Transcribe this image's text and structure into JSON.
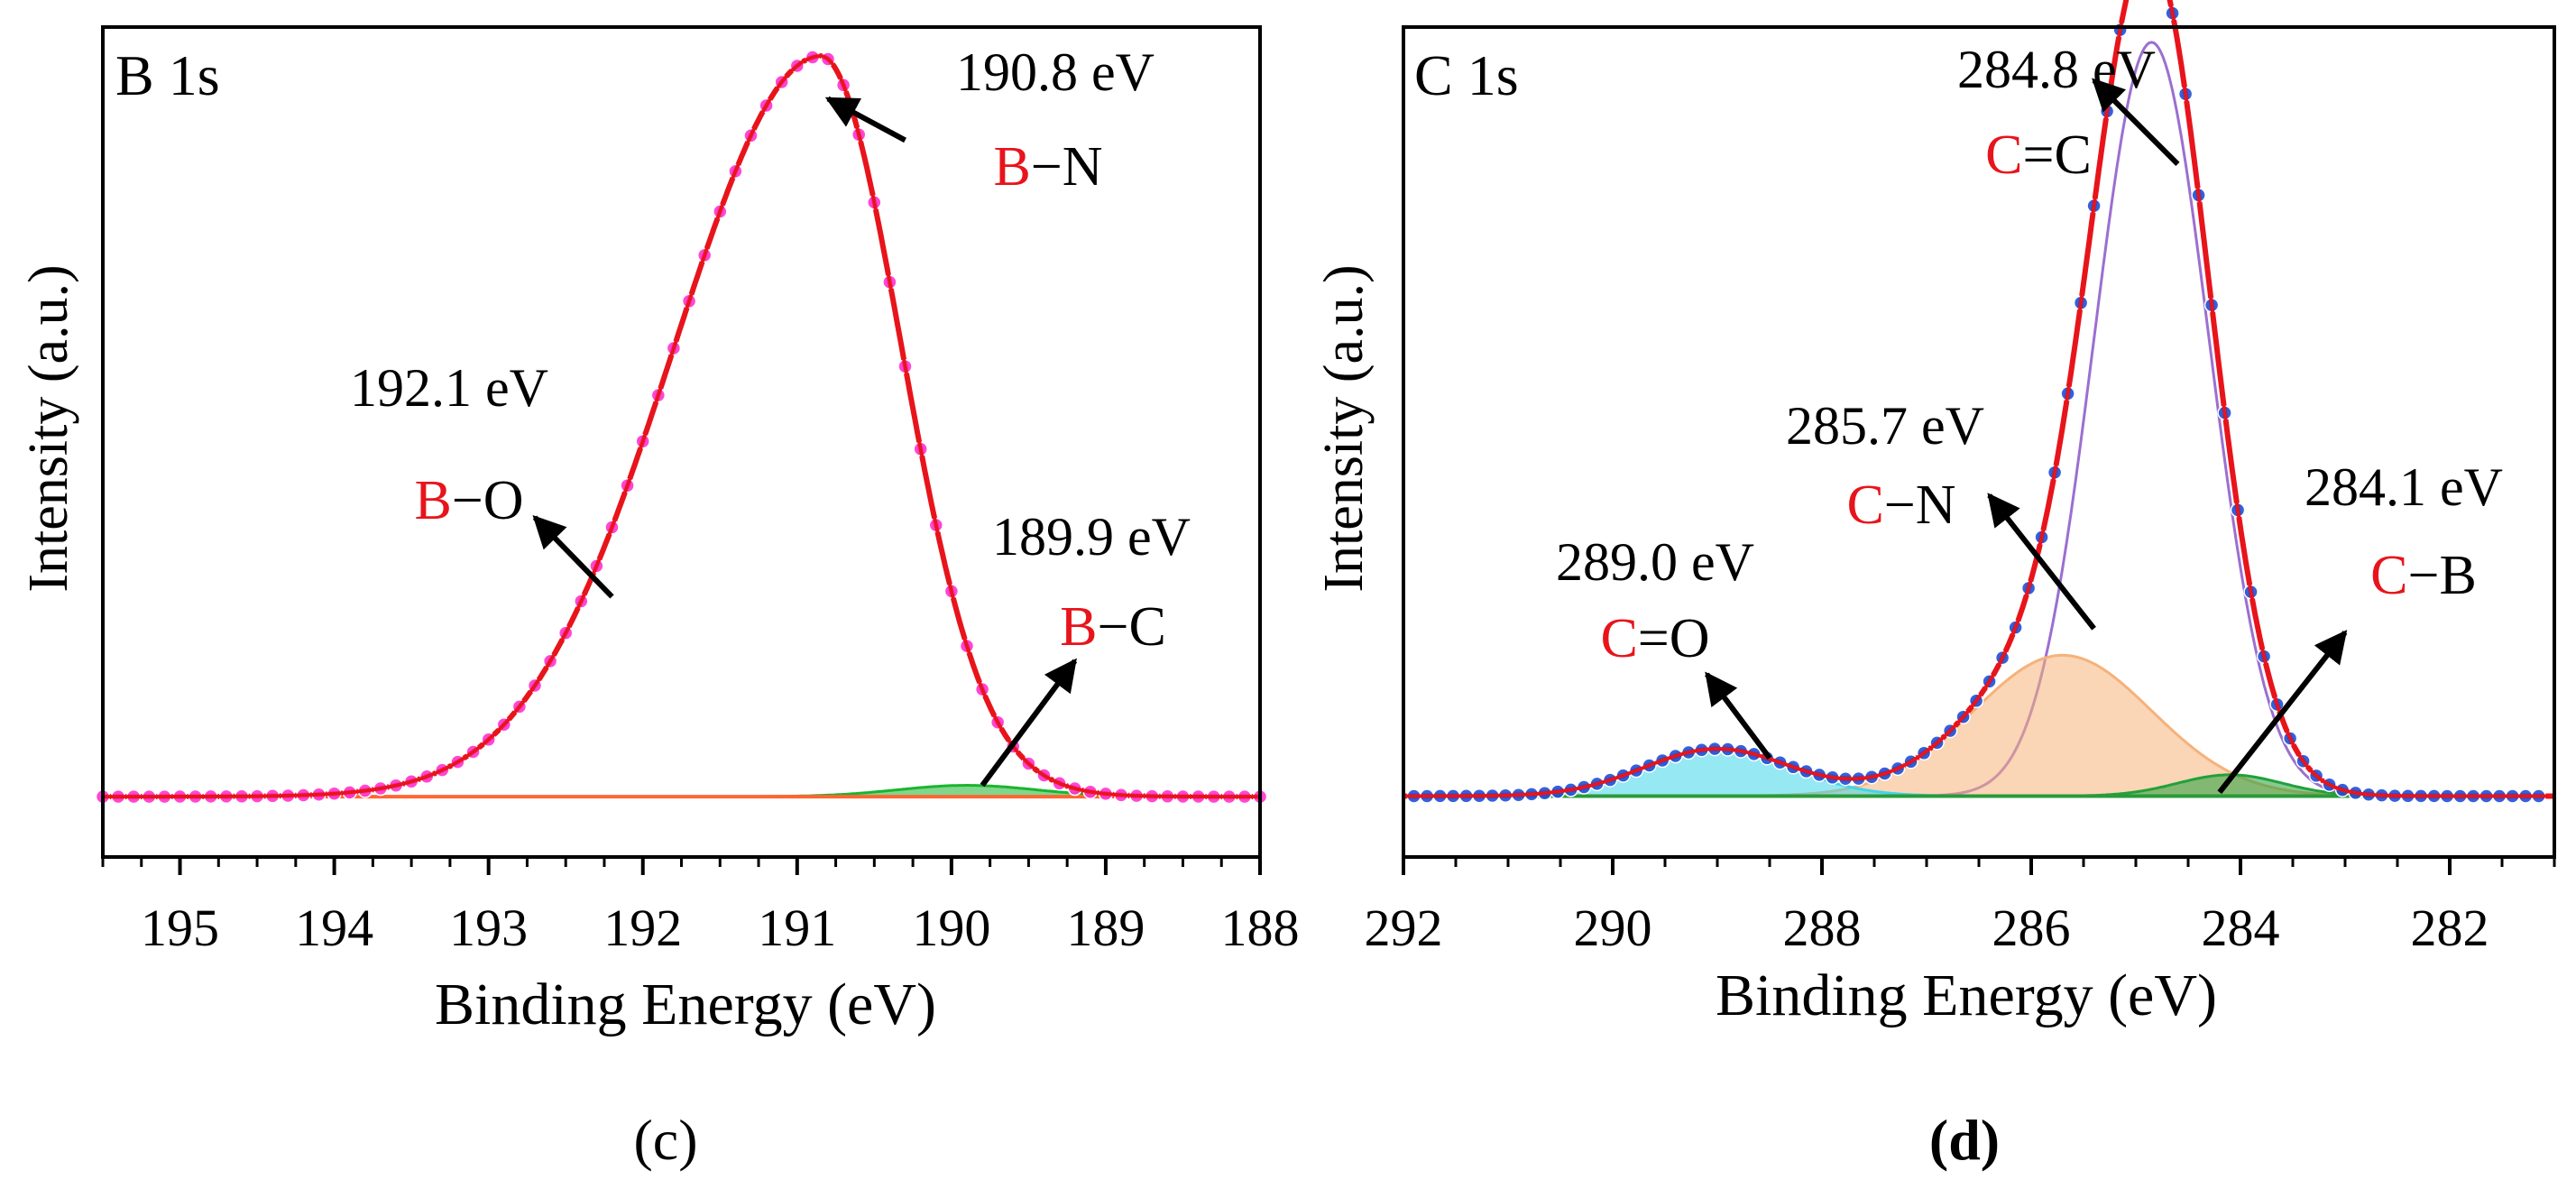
{
  "chart_data": [
    {
      "type": "line",
      "panel_label": "(c)",
      "panel_label_bold": false,
      "title": "B 1s",
      "xlabel": "Binding Energy (eV)",
      "ylabel": "Intensity (a.u.)",
      "xlim": [
        195.5,
        188
      ],
      "x_ticks": [
        195,
        194,
        193,
        192,
        191,
        190,
        189,
        188
      ],
      "ylim": [
        -60,
        1040
      ],
      "background": 20,
      "colors": {
        "fit": "#e8141b",
        "data": "#ff33cc",
        "B-C": "#19b52e",
        "baseline": "#ff6633"
      },
      "components": [
        {
          "name": "B-N",
          "type": "asym",
          "center": 190.85,
          "amp": 980,
          "sigma_low": 0.52,
          "sigma_high": 0.95
        },
        {
          "name": "B-C",
          "type": "gauss",
          "center": 189.9,
          "amp": 15,
          "sigma": 0.45
        }
      ],
      "data_points": {
        "from": 195.5,
        "to": 188,
        "step": 0.1
      },
      "annotations": [
        {
          "value": "190.8 eV",
          "bond": "B",
          "dash": "−",
          "partner": "N",
          "arrow_from": [
            190.3,
            890
          ],
          "arrow_to": [
            190.8,
            945
          ]
        },
        {
          "value": "192.1 eV",
          "bond": "B",
          "dash": "−",
          "partner": "O",
          "arrow_from": [
            192.2,
            285
          ],
          "arrow_to": [
            192.7,
            390
          ]
        },
        {
          "value": "189.9 eV",
          "bond": "B",
          "dash": "−",
          "partner": "C",
          "arrow_from": [
            189.8,
            35
          ],
          "arrow_to": [
            189.2,
            200
          ]
        }
      ]
    },
    {
      "type": "line",
      "panel_label": "(d)",
      "panel_label_bold": true,
      "title": "C 1s",
      "xlabel": "Binding Energy (eV)",
      "ylabel": "Intensity (a.u.)",
      "xlim": [
        292,
        281
      ],
      "x_ticks": [
        292,
        290,
        288,
        286,
        284,
        282
      ],
      "ylim": [
        -60,
        1030
      ],
      "background": 20,
      "colors": {
        "fit": "#e8141b",
        "data": "#1f4fd6",
        "C=C": "#9b6fd0",
        "C-N": "#f5b27a",
        "C-B": "#21a13a",
        "C=O": "#3fd6ea",
        "baseline": "#2a9a3a"
      },
      "components": [
        {
          "name": "C=C",
          "type": "gauss",
          "center": 284.85,
          "amp": 990,
          "sigma": 0.55
        },
        {
          "name": "C-N",
          "type": "gauss",
          "center": 285.7,
          "amp": 185,
          "sigma": 0.85
        },
        {
          "name": "C-B",
          "type": "gauss",
          "center": 284.1,
          "amp": 28,
          "sigma": 0.5
        },
        {
          "name": "C=O",
          "type": "gauss",
          "center": 289.0,
          "amp": 62,
          "sigma": 0.7
        }
      ],
      "data_points": {
        "from": 291.9,
        "to": 281.1,
        "step": 0.125
      },
      "annotations": [
        {
          "value": "284.8 eV",
          "bond": "C",
          "dash": "=",
          "partner": "C",
          "arrow_from": [
            284.6,
            850
          ],
          "arrow_to": [
            285.4,
            960
          ]
        },
        {
          "value": "285.7 eV",
          "bond": "C",
          "dash": "−",
          "partner": "N",
          "arrow_from": [
            285.4,
            240
          ],
          "arrow_to": [
            286.4,
            415
          ]
        },
        {
          "value": "284.1 eV",
          "bond": "C",
          "dash": "−",
          "partner": "B",
          "arrow_from": [
            284.2,
            25
          ],
          "arrow_to": [
            283.0,
            235
          ]
        },
        {
          "value": "289.0 eV",
          "bond": "C",
          "dash": "=",
          "partner": "O",
          "arrow_from": [
            288.5,
            70
          ],
          "arrow_to": [
            289.1,
            180
          ]
        }
      ]
    }
  ]
}
